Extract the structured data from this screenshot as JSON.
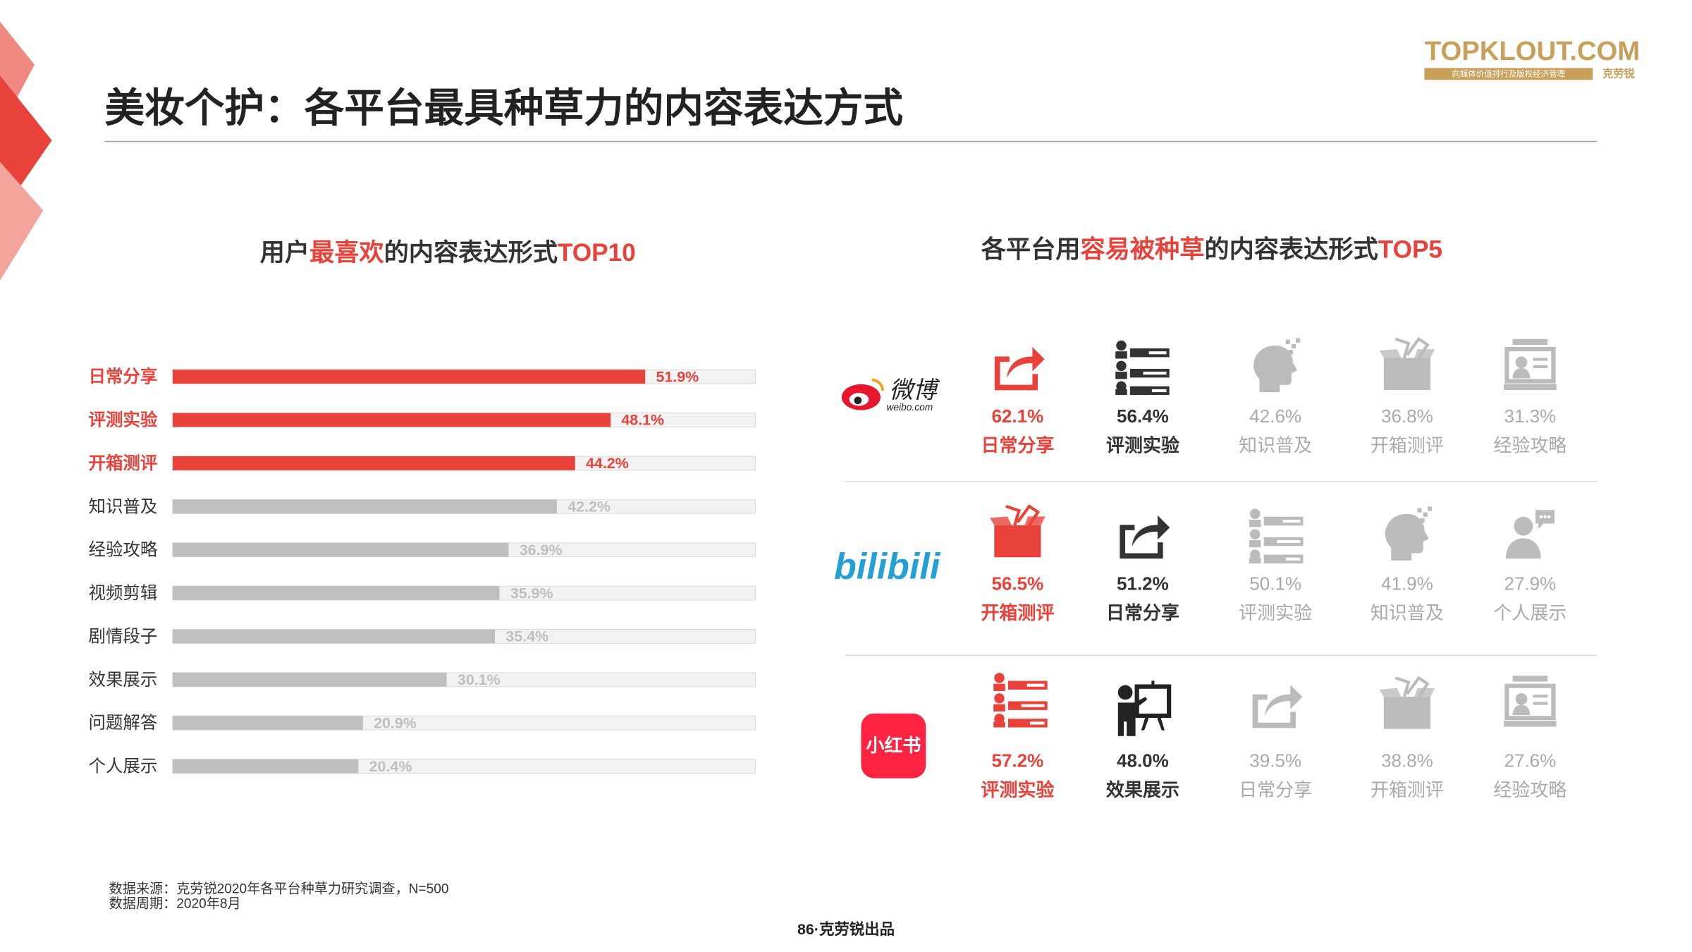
{
  "title": "美妆个护：各平台最具种草力的内容表达方式",
  "logo": {
    "brand": "TOPKLOUT.COM",
    "tagline": "向媒体价值排行及版权经济管理",
    "name": "克劳锐"
  },
  "chart_data": {
    "type": "bar",
    "orientation": "horizontal",
    "title_parts": [
      {
        "text": "用户",
        "color": "#333333"
      },
      {
        "text": "最喜欢",
        "color": "#e8423a"
      },
      {
        "text": "的内容表达形式",
        "color": "#333333"
      },
      {
        "text": "TOP10",
        "color": "#e8423a"
      }
    ],
    "categories": [
      "日常分享",
      "评测实验",
      "开箱测评",
      "知识普及",
      "经验攻略",
      "视频剪辑",
      "剧情段子",
      "效果展示",
      "问题解答",
      "个人展示"
    ],
    "values": [
      51.9,
      48.1,
      44.2,
      42.2,
      36.9,
      35.9,
      35.4,
      30.1,
      20.9,
      20.4
    ],
    "value_labels": [
      "51.9%",
      "48.1%",
      "44.2%",
      "42.2%",
      "36.9%",
      "35.9%",
      "35.4%",
      "30.1%",
      "20.9%",
      "20.4%"
    ],
    "colors": [
      "#e8423a",
      "#e8423a",
      "#e8423a",
      "#bfbfbf",
      "#bfbfbf",
      "#bfbfbf",
      "#bfbfbf",
      "#bfbfbf",
      "#bfbfbf",
      "#bfbfbf"
    ],
    "label_colors": [
      "#e8423a",
      "#e8423a",
      "#e8423a",
      "#333333",
      "#333333",
      "#333333",
      "#333333",
      "#333333",
      "#333333",
      "#333333"
    ],
    "xlim": [
      0,
      64
    ]
  },
  "platforms_title_parts": [
    {
      "text": "各平台用",
      "color": "#333333"
    },
    {
      "text": "容易被种草",
      "color": "#e8423a"
    },
    {
      "text": "的内容表达形式",
      "color": "#333333"
    },
    {
      "text": "TOP5",
      "color": "#e8423a"
    }
  ],
  "platforms": [
    {
      "logo": [
        "微博",
        "weibo.com"
      ],
      "items": [
        {
          "value": "62.1%",
          "label": "日常分享",
          "color": "#e8423a"
        },
        {
          "value": "56.4%",
          "label": "评测实验",
          "color": "#333333"
        },
        {
          "value": "42.6%",
          "label": "知识普及",
          "color": "#aaaaaa"
        },
        {
          "value": "36.8%",
          "label": "开箱测评",
          "color": "#aaaaaa"
        },
        {
          "value": "31.3%",
          "label": "经验攻略",
          "color": "#aaaaaa"
        }
      ]
    },
    {
      "logo": [
        "bilibili"
      ],
      "items": [
        {
          "value": "56.5%",
          "label": "开箱测评",
          "color": "#e8423a"
        },
        {
          "value": "51.2%",
          "label": "日常分享",
          "color": "#333333"
        },
        {
          "value": "50.1%",
          "label": "评测实验",
          "color": "#aaaaaa"
        },
        {
          "value": "41.9%",
          "label": "知识普及",
          "color": "#aaaaaa"
        },
        {
          "value": "27.9%",
          "label": "个人展示",
          "color": "#aaaaaa"
        }
      ]
    },
    {
      "logo": [
        "小红书"
      ],
      "items": [
        {
          "value": "57.2%",
          "label": "评测实验",
          "color": "#e8423a"
        },
        {
          "value": "48.0%",
          "label": "效果展示",
          "color": "#333333"
        },
        {
          "value": "39.5%",
          "label": "日常分享",
          "color": "#aaaaaa"
        },
        {
          "value": "38.8%",
          "label": "开箱测评",
          "color": "#aaaaaa"
        },
        {
          "value": "27.6%",
          "label": "经验攻略",
          "color": "#aaaaaa"
        }
      ]
    }
  ],
  "footnotes": [
    "数据来源：克劳锐2020年各平台种草力研究调查，N=500",
    "数据周期：2020年8月"
  ],
  "page": "86·克劳锐出品"
}
